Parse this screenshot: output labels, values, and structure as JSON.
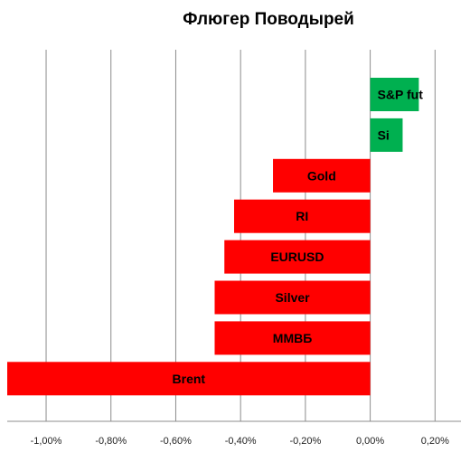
{
  "chart_data": {
    "type": "bar",
    "orientation": "horizontal",
    "title": "Флюгер Поводырей",
    "xlabel": "",
    "ylabel": "",
    "xlim": [
      -0.0112,
      0.0028
    ],
    "x_ticks": [
      -0.01,
      -0.008,
      -0.006,
      -0.004,
      -0.002,
      0.0,
      0.002
    ],
    "x_tick_labels": [
      "-1,00%",
      "-0,80%",
      "-0,60%",
      "-0,40%",
      "-0,20%",
      "0,00%",
      "0,20%"
    ],
    "grid": true,
    "legend": "none",
    "colors": {
      "positive": "#00b050",
      "negative": "#ff0000"
    },
    "categories": [
      "S&P fut",
      "Si",
      "Gold",
      "RI",
      "EURUSD",
      "Silver",
      "ММВБ",
      "Brent"
    ],
    "values": [
      0.0015,
      0.001,
      -0.003,
      -0.0042,
      -0.0045,
      -0.0048,
      -0.0048,
      -0.0112
    ]
  }
}
